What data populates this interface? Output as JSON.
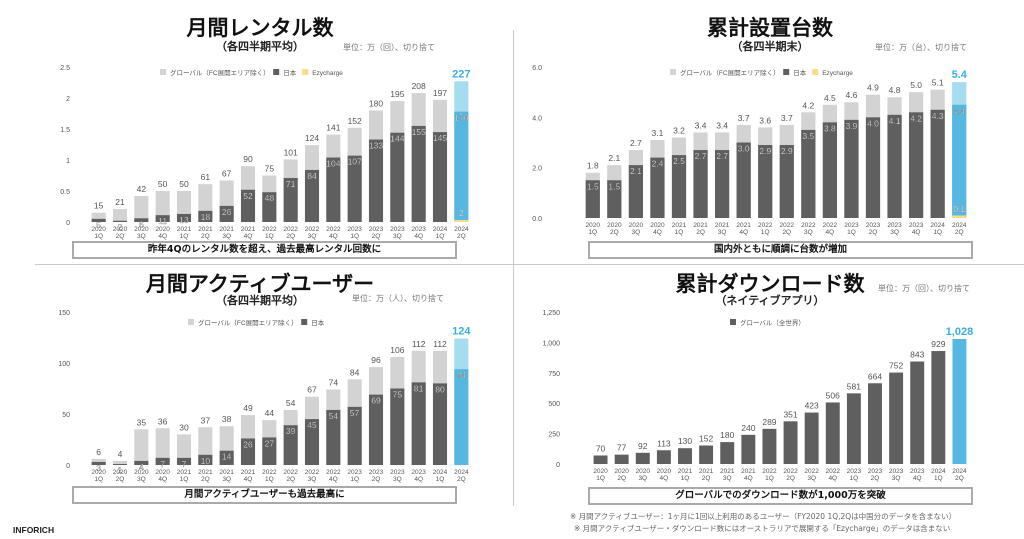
{
  "footer": {
    "brand": "INFORICH"
  },
  "notes": [
    "※ 月間アクティブユーザー：1ヶ月に1回以上利用のあるユーザー（FY2020 1Q,2Qは中国分のデータを含まない）",
    "※ 月間アクティブユーザー・ダウンロード数にはオーストラリアで展開する「Ezycharge」のデータは含まない"
  ],
  "colors": {
    "global": "#d3d3d3",
    "japan": "#5f5f5f",
    "ezycharge": "#f7dc8b",
    "highlight": "#56b8e0",
    "highlight_light": "#a6dcef"
  },
  "chart_data": [
    {
      "type": "bar",
      "stacked": true,
      "title": "月間レンタル数",
      "subtitle": "（各四半期平均）",
      "unit_note": "単位：万（回）、切り捨て",
      "caption": "昨年4Qのレンタル数を超え、過去最高レンタル回数に",
      "legend": [
        "グローバル（FC展開エリア除く）",
        "日本",
        "Ezycharge"
      ],
      "legend_position": "top-center",
      "yticks": [
        "0",
        "0.5",
        "1",
        "1.5",
        "2",
        "2.5"
      ],
      "ylim": [
        0,
        250
      ],
      "categories": [
        "2020 1Q",
        "2020 2Q",
        "2020 3Q",
        "2020 4Q",
        "2021 1Q",
        "2021 2Q",
        "2021 3Q",
        "2021 4Q",
        "2022 1Q",
        "2022 2Q",
        "2022 3Q",
        "2022 4Q",
        "2023 1Q",
        "2023 2Q",
        "2023 3Q",
        "2023 4Q",
        "2024 1Q",
        "2024 2Q"
      ],
      "totals": [
        15,
        21,
        42,
        50,
        50,
        61,
        67,
        90,
        75,
        101,
        124,
        141,
        152,
        180,
        195,
        208,
        197,
        227
      ],
      "series": [
        {
          "name": "日本",
          "values": [
            5,
            2,
            6,
            11,
            13,
            18,
            26,
            52,
            48,
            71,
            84,
            104,
            107,
            133,
            144,
            155,
            145,
            176
          ]
        },
        {
          "name": "Ezycharge",
          "values": [
            0,
            0,
            0,
            0,
            0,
            0,
            0,
            0,
            0,
            0,
            0,
            0,
            0,
            0,
            0,
            0,
            0,
            2
          ]
        }
      ]
    },
    {
      "type": "bar",
      "stacked": true,
      "title": "累計設置台数",
      "subtitle": "（各四半期末）",
      "unit_note": "単位：万（台）、切り捨て",
      "caption": "国内外ともに順調に台数が増加",
      "legend": [
        "グローバル（FC展開エリア除く）",
        "日本",
        "Ezycharge"
      ],
      "legend_position": "top-center",
      "yticks": [
        "0.0",
        "2.0",
        "4.0",
        "6.0"
      ],
      "ylim": [
        0,
        6
      ],
      "categories": [
        "2020 1Q",
        "2020 2Q",
        "2020 3Q",
        "2020 4Q",
        "2021 1Q",
        "2021 2Q",
        "2021 3Q",
        "2021 4Q",
        "2022 1Q",
        "2022 2Q",
        "2022 3Q",
        "2022 4Q",
        "2023 1Q",
        "2023 2Q",
        "2023 3Q",
        "2023 4Q",
        "2024 1Q",
        "2024 2Q"
      ],
      "totals": [
        1.8,
        2.1,
        2.7,
        3.1,
        3.2,
        3.4,
        3.4,
        3.7,
        3.6,
        3.7,
        4.2,
        4.5,
        4.6,
        4.9,
        4.8,
        5.0,
        5.1,
        5.4
      ],
      "series": [
        {
          "name": "日本",
          "values": [
            1.5,
            1.5,
            2.1,
            2.4,
            2.5,
            2.7,
            2.7,
            3.0,
            2.9,
            2.9,
            3.5,
            3.8,
            3.9,
            4.0,
            4.1,
            4.2,
            4.3,
            4.4
          ]
        },
        {
          "name": "Ezycharge",
          "values": [
            0,
            0,
            0,
            0,
            0,
            0,
            0,
            0,
            0,
            0,
            0,
            0,
            0,
            0,
            0,
            0,
            0,
            0.1
          ]
        }
      ],
      "decimals": 1
    },
    {
      "type": "bar",
      "stacked": true,
      "title": "月間アクティブユーザー",
      "subtitle": "（各四半期平均）",
      "unit_note": "単位：万（人）、切り捨て",
      "caption": "月間アクティブユーザーも過去最高に",
      "legend": [
        "グローバル（FC展開エリア除く）",
        "日本"
      ],
      "legend_position": "top-center",
      "yticks": [
        "0",
        "50",
        "100",
        "150"
      ],
      "ylim": [
        0,
        150
      ],
      "categories": [
        "2020 1Q",
        "2020 2Q",
        "2020 3Q",
        "2020 4Q",
        "2021 1Q",
        "2021 2Q",
        "2021 3Q",
        "2021 4Q",
        "2022 1Q",
        "2022 2Q",
        "2022 3Q",
        "2022 4Q",
        "2023 1Q",
        "2023 2Q",
        "2023 3Q",
        "2023 4Q",
        "2024 1Q",
        "2024 2Q"
      ],
      "totals": [
        6,
        4,
        35,
        36,
        30,
        37,
        38,
        49,
        44,
        54,
        67,
        74,
        84,
        96,
        106,
        112,
        112,
        124
      ],
      "series": [
        {
          "name": "日本",
          "values": [
            3,
            1,
            4,
            7,
            7,
            10,
            14,
            26,
            27,
            39,
            45,
            54,
            57,
            69,
            75,
            81,
            80,
            94
          ]
        }
      ]
    },
    {
      "type": "bar",
      "stacked": false,
      "title": "累計ダウンロード数",
      "subtitle": "（ネイティブアプリ）",
      "unit_note": "単位：万（回）、切り捨て",
      "caption": "グローバルでのダウンロード数が1,000万を突破",
      "legend": [
        "グローバル（全世界）"
      ],
      "legend_position": "top-center",
      "yticks": [
        "0",
        "250",
        "500",
        "750",
        "1,000",
        "1,250"
      ],
      "ylim": [
        0,
        1250
      ],
      "categories": [
        "2020 1Q",
        "2020 2Q",
        "2020 3Q",
        "2020 4Q",
        "2021 1Q",
        "2021 2Q",
        "2021 3Q",
        "2021 4Q",
        "2022 1Q",
        "2022 2Q",
        "2022 3Q",
        "2022 4Q",
        "2023 1Q",
        "2023 2Q",
        "2023 3Q",
        "2023 4Q",
        "2024 1Q",
        "2024 2Q"
      ],
      "totals": [
        70,
        77,
        92,
        113,
        130,
        152,
        180,
        240,
        289,
        351,
        423,
        506,
        581,
        664,
        752,
        843,
        929,
        1028
      ],
      "total_labels": [
        "70",
        "77",
        "92",
        "113",
        "130",
        "152",
        "180",
        "240",
        "289",
        "351",
        "423",
        "506",
        "581",
        "664",
        "752",
        "843",
        "929",
        "1,028"
      ],
      "series": []
    }
  ]
}
